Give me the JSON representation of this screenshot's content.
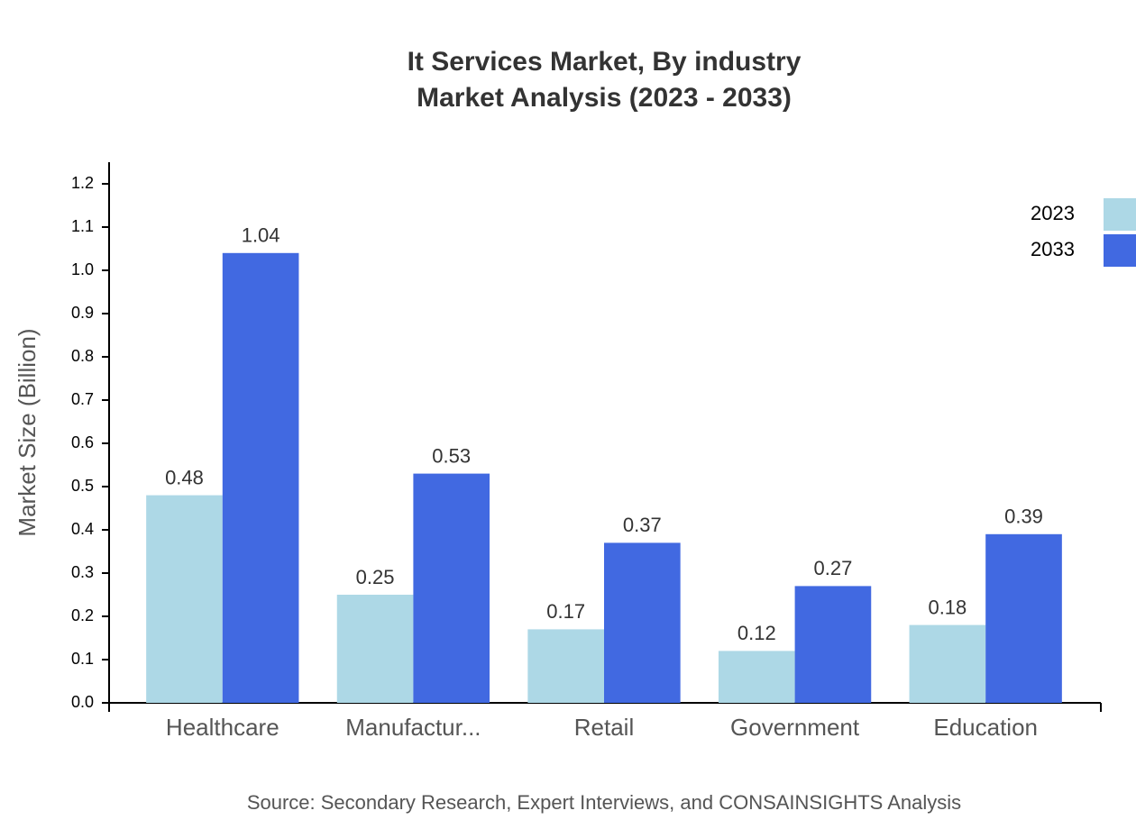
{
  "chart_data": {
    "type": "bar",
    "title": "It Services Market, By industry",
    "subtitle": "Market Analysis (2023 - 2033)",
    "y_label": "Market Size (Billion)",
    "source": "Source: Secondary Research, Expert Interviews, and CONSAINSIGHTS Analysis",
    "categories": [
      "Healthcare",
      "Manufactur...",
      "Retail",
      "Government",
      "Education"
    ],
    "series": [
      {
        "name": "2023",
        "color": "#add8e6",
        "values": [
          0.48,
          0.25,
          0.17,
          0.12,
          0.18
        ]
      },
      {
        "name": "2033",
        "color": "#4169e1",
        "values": [
          1.04,
          0.53,
          0.37,
          0.27,
          0.39
        ]
      }
    ],
    "ylim": [
      0,
      1.25
    ],
    "yticks": [
      {
        "value": 0,
        "label": "0.0"
      },
      0.1,
      0.2,
      0.3,
      0.4,
      0.5,
      0.6,
      0.7,
      0.8,
      0.9,
      {
        "value": 1,
        "label": "1.0"
      },
      1.1,
      1.2
    ],
    "legend": "top-right"
  }
}
